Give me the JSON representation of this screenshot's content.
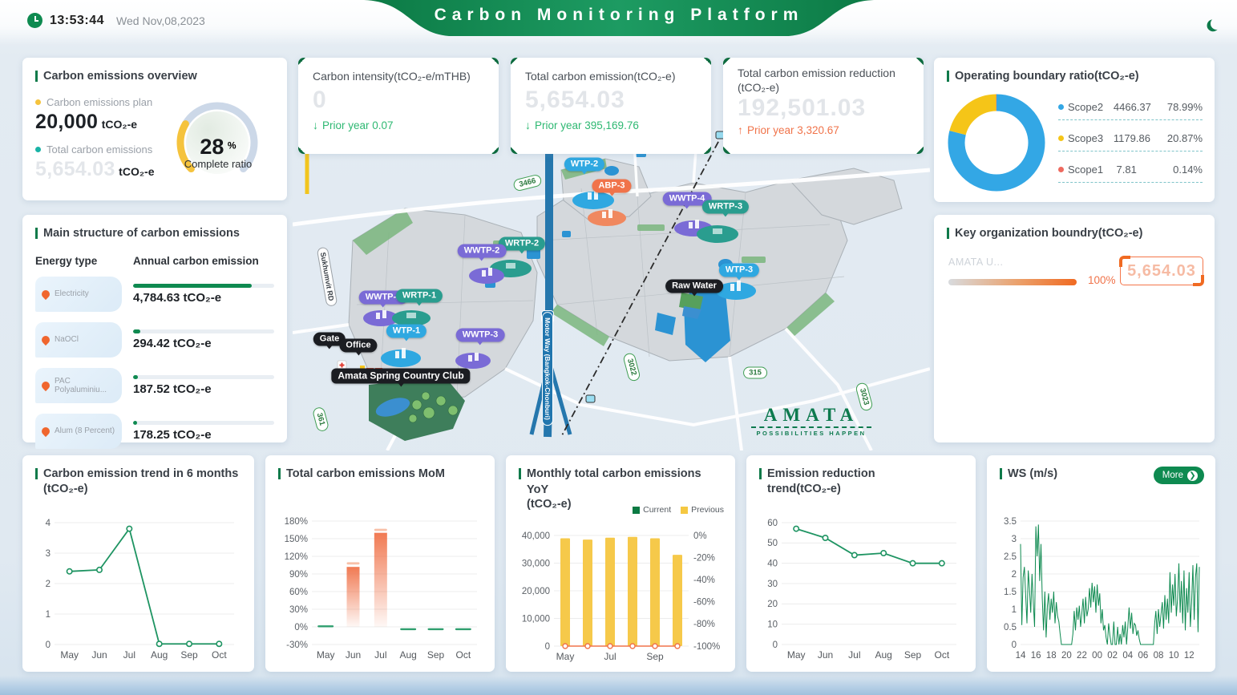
{
  "header": {
    "time": "13:53:44",
    "date": "Wed  Nov,08,2023",
    "title": "Carbon Monitoring Platform"
  },
  "overview": {
    "title": "Carbon emissions overview",
    "plan_label": "Carbon emissions plan",
    "plan_value": "20,000",
    "plan_unit": "tCO₂-e",
    "total_label": "Total carbon emissions",
    "total_value": "5,654.03",
    "total_unit": "tCO₂-e",
    "gauge": {
      "percent": 28,
      "percent_text": "28",
      "suffix": "%",
      "label": "Complete ratio",
      "arc_color": "#f5c33d",
      "track_color": "#ccd8e8"
    }
  },
  "main_structure": {
    "title": "Main structure of carbon emissions",
    "col1": "Energy type",
    "col2": "Annual carbon emission",
    "rows": [
      {
        "name": "Electricity",
        "value": "4,784.63 tCO₂-e",
        "pct": 84
      },
      {
        "name": "NaOCl",
        "value": "294.42 tCO₂-e",
        "pct": 5.2
      },
      {
        "name": "PAC Polyaluminiu...",
        "value": "187.52 tCO₂-e",
        "pct": 3.3
      },
      {
        "name": "Alum (8 Percent)",
        "value": "178.25 tCO₂-e",
        "pct": 3.1
      }
    ]
  },
  "kpis": [
    {
      "title": "Carbon intensity(tCO₂-e/mTHB)",
      "value": "0",
      "dir": "down",
      "arrow": "↓",
      "delta": "Prior year 0.07"
    },
    {
      "title": "Total carbon emission(tCO₂-e)",
      "value": "5,654.03",
      "dir": "down",
      "arrow": "↓",
      "delta": "Prior year 395,169.76"
    },
    {
      "title": "Total carbon emission reduction (tCO₂-e)",
      "value": "192,501.03",
      "dir": "up",
      "arrow": "↑",
      "delta": "Prior year 3,320.67"
    }
  ],
  "boundary_ratio": {
    "title": "Operating boundary ratio(tCO₂-e)",
    "slices": [
      {
        "name": "Scope2",
        "value": "4466.37",
        "pct": "78.99%",
        "num": 78.99,
        "color": "#33a7e5"
      },
      {
        "name": "Scope3",
        "value": "1179.86",
        "pct": "20.87%",
        "num": 20.87,
        "color": "#f5c518"
      },
      {
        "name": "Scope1",
        "value": "7.81",
        "pct": "0.14%",
        "num": 0.14,
        "color": "#ee6a5f"
      }
    ]
  },
  "org_boundary": {
    "title": "Key organization boundry(tCO₂-e)",
    "bar_label": "AMATA U...",
    "bar_pct": "100%",
    "value": "5,654.03"
  },
  "map": {
    "facilities": [
      {
        "label": "WTP-2"
      },
      {
        "label": "ABP-3"
      },
      {
        "label": "WWTP-4"
      },
      {
        "label": "WRTP-3"
      },
      {
        "label": "WRTP-2"
      },
      {
        "label": "WWTP-2"
      },
      {
        "label": "WTP-3"
      },
      {
        "label": "Raw Water"
      },
      {
        "label": "WWTP-1"
      },
      {
        "label": "WRTP-1"
      },
      {
        "label": "WTP-1"
      },
      {
        "label": "WWTP-3"
      },
      {
        "label": "Gate"
      },
      {
        "label": "Office"
      },
      {
        "label": "Amata Spring Country Club"
      }
    ],
    "road_badges": [
      {
        "label": "3466"
      },
      {
        "label": "315"
      },
      {
        "label": "3023"
      },
      {
        "label": "3022"
      },
      {
        "label": "361"
      }
    ],
    "sukhumvit": "Sukhumvit RD",
    "motorway": "Motor Way (Bangkok-Chonburi)",
    "motorway_no": "7",
    "logo_name": "AMATA",
    "logo_tag": "POSSIBILITIES HAPPEN"
  },
  "chart_data": [
    {
      "id": "trend6",
      "type": "line",
      "title": "Carbon emission trend in 6 months",
      "title2": "(tCO₂-e)",
      "categories": [
        "May",
        "Jun",
        "Jul",
        "Aug",
        "Sep",
        "Oct"
      ],
      "values": [
        2.4,
        2.45,
        3.8,
        0.02,
        0.02,
        0.02
      ],
      "ylim": [
        0,
        4
      ],
      "yticks": [
        0,
        1,
        2,
        3,
        4
      ],
      "color": "#1e9462",
      "grid": true,
      "legend_position": "none"
    },
    {
      "id": "mom",
      "type": "bar",
      "title": "Total carbon emissions MoM",
      "categories": [
        "May",
        "Jun",
        "Jul",
        "Aug",
        "Sep",
        "Oct"
      ],
      "values": [
        1,
        102,
        160,
        -4,
        -4,
        -4
      ],
      "cap_values": [
        null,
        108,
        165,
        null,
        null,
        null
      ],
      "ylim": [
        -30,
        180
      ],
      "yticks": [
        -30,
        0,
        30,
        60,
        90,
        120,
        150,
        180
      ],
      "ytick_suffix": "%",
      "bar_color": "#f0734a",
      "cap_color": "#f8c0a8",
      "dash_color": "#2f9e6e",
      "grid": true
    },
    {
      "id": "yoy",
      "type": "bar-line",
      "title": "Monthly total carbon emissions YoY",
      "title2": "(tCO₂-e)",
      "legend": [
        {
          "label": "Current",
          "color": "#0b7a43"
        },
        {
          "label": "Previous",
          "color": "#f5c842"
        }
      ],
      "categories": [
        "May",
        "Jun",
        "Jul",
        "Aug",
        "Sep",
        "Oct"
      ],
      "series": [
        {
          "name": "Current",
          "type": "bar",
          "color": "#0b7a43",
          "values": [
            0,
            0,
            0,
            0,
            0,
            0
          ]
        },
        {
          "name": "Previous",
          "type": "bar",
          "color": "#f6c94a",
          "values": [
            39000,
            38500,
            39200,
            39500,
            39000,
            33000
          ]
        },
        {
          "name": "YoY",
          "type": "line",
          "axis": "right",
          "color": "#f0734a",
          "values": [
            -100,
            -100,
            -100,
            -100,
            -100,
            -100
          ]
        }
      ],
      "ylim_left": [
        0,
        40000
      ],
      "yticks_left": [
        0,
        10000,
        20000,
        30000,
        40000
      ],
      "ytick_left_labels": [
        "0",
        "10,000",
        "20,000",
        "30,000",
        "40,000"
      ],
      "ylim_right": [
        -100,
        0
      ],
      "yticks_right": [
        0,
        -20,
        -40,
        -60,
        -80,
        -100
      ],
      "ytick_right_labels": [
        "0%",
        "-20%",
        "-40%",
        "-60%",
        "-80%",
        "-100%"
      ],
      "xtick_labels": [
        "May",
        "",
        "Jul",
        "",
        "Sep",
        ""
      ],
      "grid": true,
      "legend_position": "top-right"
    },
    {
      "id": "reduction",
      "type": "line",
      "title": "Emission reduction",
      "title2": "trend(tCO₂-e)",
      "categories": [
        "May",
        "Jun",
        "Jul",
        "Aug",
        "Sep",
        "Oct"
      ],
      "values": [
        57,
        52.5,
        44,
        45,
        40,
        40
      ],
      "ylim": [
        0,
        60
      ],
      "yticks": [
        0,
        10,
        20,
        30,
        40,
        50,
        60
      ],
      "color": "#1e9462",
      "grid": true
    },
    {
      "id": "ws",
      "type": "line-dense",
      "title": "WS (m/s)",
      "more_label": "More",
      "more_arrow": "❯",
      "x_labels": [
        "14",
        "16",
        "18",
        "20",
        "22",
        "00",
        "02",
        "04",
        "06",
        "08",
        "10",
        "12"
      ],
      "x_label_every": 12,
      "values": [
        2.85,
        0.55,
        1.9,
        2.2,
        1.4,
        0.6,
        2.1,
        1.6,
        0.9,
        2.0,
        1.2,
        0.5,
        3.35,
        2.5,
        3.4,
        1.8,
        2.85,
        1.3,
        0.4,
        1.5,
        0.2,
        1.1,
        1.45,
        0.7,
        1.3,
        0.9,
        1.5,
        0.6,
        1.2,
        0.8,
        0.65,
        0.3,
        0,
        0,
        0,
        0,
        0,
        0,
        0,
        0,
        0,
        0.3,
        0.95,
        0.4,
        1.05,
        0.7,
        1.1,
        0.5,
        0.9,
        1.3,
        0.6,
        1.35,
        0.8,
        1.0,
        1.6,
        1.05,
        1.75,
        1.2,
        1.65,
        0.9,
        1.7,
        1.1,
        1.45,
        0.6,
        1.0,
        0.4,
        0.55,
        0.2,
        0,
        0.6,
        0.25,
        0,
        0,
        0.65,
        0,
        0,
        0.5,
        0,
        0.3,
        0,
        0.55,
        0.2,
        0.65,
        0,
        0.5,
        1.05,
        0.45,
        0.9,
        0.3,
        0.6,
        0.55,
        0.25,
        0.4,
        0.15,
        0,
        0,
        0,
        0,
        0,
        0,
        0,
        0,
        0,
        0,
        0,
        0.6,
        0.95,
        0.3,
        1.0,
        0.5,
        0.85,
        1.2,
        0.45,
        1.4,
        0.7,
        1.3,
        0.6,
        2.05,
        0.9,
        1.7,
        1.1,
        2.0,
        0.8,
        1.3,
        2.3,
        0.9,
        1.8,
        0.6,
        2.1,
        0.4,
        1.6,
        0.9,
        2.05,
        0.5,
        1.2,
        2.25,
        0.7,
        1.9,
        2.3,
        0.35,
        2.2
      ],
      "ylim": [
        0,
        3.5
      ],
      "yticks": [
        0,
        0.5,
        1,
        1.5,
        2,
        2.5,
        3,
        3.5
      ],
      "color": "#0e8a50",
      "grid": true
    }
  ]
}
